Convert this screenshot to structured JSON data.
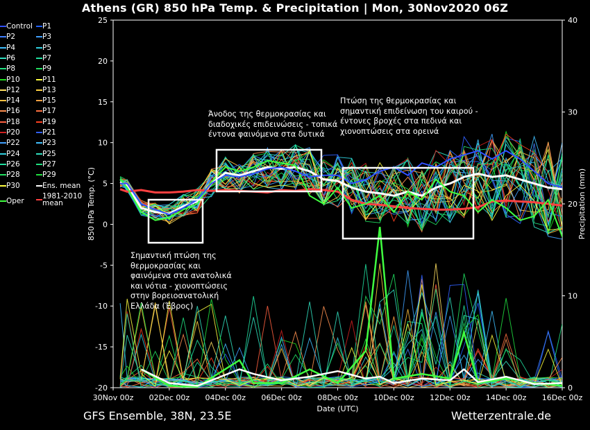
{
  "header": {
    "title": "Athens  (GR)  850 hPa Temp. & Precipitation | Mon, 30Nov2020 06Z"
  },
  "footer": {
    "left": "GFS Ensemble, 38N, 23.5E",
    "right": "Wetterzentrale.de"
  },
  "legend": {
    "items": [
      {
        "label": "Control",
        "color": "#3050ff"
      },
      {
        "label": "P1",
        "color": "#2060ff"
      },
      {
        "label": "P2",
        "color": "#4080ff"
      },
      {
        "label": "P3",
        "color": "#40a0ff"
      },
      {
        "label": "P4",
        "color": "#40c0ff"
      },
      {
        "label": "P5",
        "color": "#30d0e0"
      },
      {
        "label": "P6",
        "color": "#30e0c0"
      },
      {
        "label": "P7",
        "color": "#20e0a0"
      },
      {
        "label": "P8",
        "color": "#20e080"
      },
      {
        "label": "P9",
        "color": "#20e060"
      },
      {
        "label": "P10",
        "color": "#20e020"
      },
      {
        "label": "P11",
        "color": "#ffff40"
      },
      {
        "label": "P12",
        "color": "#ffe060"
      },
      {
        "label": "P13",
        "color": "#ffd040"
      },
      {
        "label": "P14",
        "color": "#ffc040"
      },
      {
        "label": "P15",
        "color": "#ffa040"
      },
      {
        "label": "P16",
        "color": "#ff9050"
      },
      {
        "label": "P17",
        "color": "#ff7040"
      },
      {
        "label": "P18",
        "color": "#ff6040"
      },
      {
        "label": "P19",
        "color": "#ff4020"
      },
      {
        "label": "P20",
        "color": "#d02020"
      },
      {
        "label": "P21",
        "color": "#3060ff"
      },
      {
        "label": "P22",
        "color": "#40a0ff"
      },
      {
        "label": "P23",
        "color": "#40c0ff"
      },
      {
        "label": "P24",
        "color": "#30d0e0"
      },
      {
        "label": "P25",
        "color": "#30e0c0"
      },
      {
        "label": "P26",
        "color": "#20e0a0"
      },
      {
        "label": "P27",
        "color": "#20e080"
      },
      {
        "label": "P28",
        "color": "#20e060"
      },
      {
        "label": "P29",
        "color": "#20e040"
      },
      {
        "label": "P30",
        "color": "#ffff40"
      },
      {
        "label": "Ens. mean",
        "color": "#ffffff"
      },
      {
        "label": "Oper",
        "color": "#40ff40"
      },
      {
        "label": "1981-2010\nmean",
        "color": "#ff4040"
      }
    ]
  },
  "annotations": {
    "a1": "Σημαντική πτώση της\nθερμοκρασίας και\nφαινόμενα στα ανατολικά\nκαι νότια - χιονοπτώσεις\nστην βορειοανατολική\nΕλλάδα (Έβρος)",
    "a2": "Άνοδος της θερμοκρασίας και\nδιαδοχικές επιδεινώσεις - τοπικά\nέντονα φαινόμενα στα δυτικά",
    "a3": "Πτώση της θερμοκρασίας και\nσημαντική επιδείνωση του καιρού -\nέντονες βροχές στα πεδινά και\nχιονοπτώσεις στα ορεινά"
  },
  "chart_data": {
    "type": "line",
    "xlabel": "Date (UTC)",
    "ylabel": "850 hPa Temp. (°C)",
    "y2label": "Precipitation (mm)",
    "ylim": [
      -20,
      25
    ],
    "y2lim": [
      0,
      40
    ],
    "xlim_days": [
      0,
      16
    ],
    "x_tick_labels": [
      "30Nov 00z",
      "02Dec 00z",
      "04Dec 00z",
      "06Dec 00z",
      "08Dec 00z",
      "10Dec 00z",
      "12Dec 00z",
      "14Dec 00z",
      "16Dec 00z"
    ],
    "y_ticks": [
      -20,
      -15,
      -10,
      -5,
      0,
      5,
      10,
      15,
      20,
      25
    ],
    "y2_ticks": [
      0,
      10,
      20,
      30,
      40
    ],
    "grid": false,
    "legend_position": "left",
    "x_days": [
      0.25,
      0.5,
      1,
      1.5,
      2,
      2.5,
      3,
      3.5,
      4,
      4.5,
      5,
      5.5,
      6,
      6.5,
      7,
      7.5,
      8,
      8.5,
      9,
      9.5,
      10,
      10.5,
      11,
      11.5,
      12,
      12.5,
      13,
      13.5,
      14,
      14.5,
      15,
      15.5,
      16
    ],
    "series": [
      {
        "name": "Ens. mean",
        "color": "#ffffff",
        "values": [
          5.2,
          4.8,
          2.0,
          1.5,
          1.3,
          2.2,
          2.8,
          5.0,
          6.3,
          6.0,
          6.5,
          7.0,
          6.8,
          7.0,
          6.5,
          5.5,
          5.3,
          4.5,
          4.0,
          3.8,
          3.5,
          4.0,
          3.5,
          4.5,
          5.0,
          5.8,
          6.2,
          5.8,
          6.0,
          5.5,
          5.0,
          4.5,
          4.3
        ]
      },
      {
        "name": "1981-2010 mean",
        "color": "#ff4040",
        "values": [
          4.3,
          4.0,
          4.2,
          3.9,
          3.9,
          4.0,
          4.2,
          4.1,
          4.2,
          4.1,
          4.0,
          3.9,
          4.2,
          4.1,
          4.3,
          4.2,
          4.0,
          3.0,
          2.5,
          2.4,
          2.2,
          2.0,
          1.9,
          1.8,
          1.8,
          1.9,
          2.1,
          2.8,
          2.9,
          2.8,
          2.7,
          2.5,
          2.3
        ]
      },
      {
        "name": "Oper",
        "color": "#40ff40",
        "values": [
          5.5,
          4.5,
          1.5,
          0.5,
          0.8,
          1.8,
          2.5,
          5.2,
          7.0,
          6.5,
          7.0,
          7.8,
          7.5,
          7.2,
          3.5,
          2.5,
          4.5,
          2.0,
          2.5,
          3.5,
          1.5,
          4.0,
          3.0,
          5.5,
          4.0,
          3.5,
          1.5,
          3.0,
          2.0,
          0.5,
          1.0,
          3.0,
          -1.5
        ]
      },
      {
        "name": "Control",
        "color": "#3050ff",
        "values": [
          5.0,
          5.0,
          2.5,
          1.8,
          1.2,
          2.0,
          3.0,
          5.0,
          6.0,
          5.8,
          6.2,
          6.8,
          7.0,
          6.5,
          5.8,
          6.0,
          6.0,
          5.0,
          5.5,
          6.5,
          7.0,
          6.0,
          7.5,
          7.0,
          8.0,
          8.5,
          9.0,
          8.0,
          9.0,
          8.0,
          6.5,
          5.0,
          4.5
        ]
      }
    ],
    "precipitation": {
      "x_days": [
        1.0,
        2.0,
        3.0,
        4.5,
        5.0,
        6.0,
        7.0,
        8.0,
        9.0,
        9.5,
        10.0,
        11.0,
        12.0,
        12.5,
        13.0,
        14.0,
        15.0,
        16.0
      ],
      "ens_mean_mm": [
        2.0,
        0.5,
        0.2,
        2.0,
        1.5,
        0.8,
        1.2,
        1.8,
        1.0,
        1.2,
        0.5,
        1.0,
        0.8,
        2.0,
        0.6,
        1.2,
        0.4,
        0.5
      ],
      "oper_mm": [
        2.0,
        0.2,
        0.1,
        3.0,
        0.5,
        0.5,
        2.0,
        0.5,
        4.0,
        17.5,
        1.0,
        1.5,
        1.0,
        6.0,
        0.5,
        1.0,
        0.5,
        0.2
      ]
    },
    "boxes_note": "three highlighted regions (annotation boxes) on the plot"
  }
}
